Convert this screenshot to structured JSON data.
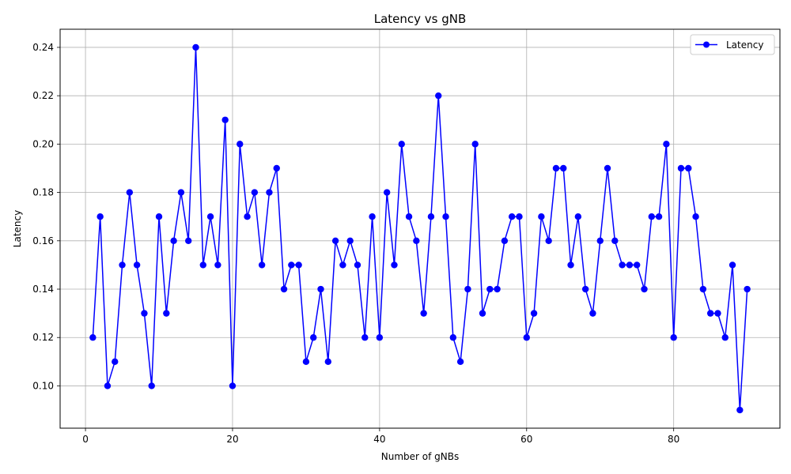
{
  "chart_data": {
    "type": "line",
    "title": "Latency vs gNB",
    "xlabel": "Number of gNBs",
    "ylabel": "Latency",
    "xlim": [
      -3.45,
      94.45
    ],
    "ylim": [
      0.0825,
      0.2475
    ],
    "xticks": [
      0,
      20,
      40,
      60,
      80
    ],
    "yticks": [
      0.1,
      0.12,
      0.14,
      0.16,
      0.18,
      0.2,
      0.22,
      0.24
    ],
    "grid": true,
    "legend_position": "top-right",
    "series": [
      {
        "name": "Latency",
        "color": "#0000ff",
        "marker": "circle",
        "x": [
          1,
          2,
          3,
          4,
          5,
          6,
          7,
          8,
          9,
          10,
          11,
          12,
          13,
          14,
          15,
          16,
          17,
          18,
          19,
          20,
          21,
          22,
          23,
          24,
          25,
          26,
          27,
          28,
          29,
          30,
          31,
          32,
          33,
          34,
          35,
          36,
          37,
          38,
          39,
          40,
          41,
          42,
          43,
          44,
          45,
          46,
          47,
          48,
          49,
          50,
          51,
          52,
          53,
          54,
          55,
          56,
          57,
          58,
          59,
          60,
          61,
          62,
          63,
          64,
          65,
          66,
          67,
          68,
          69,
          70,
          71,
          72,
          73,
          74,
          75,
          76,
          77,
          78,
          79,
          80,
          81,
          82,
          83,
          84,
          85,
          86,
          87,
          88,
          89,
          90
        ],
        "values": [
          0.12,
          0.17,
          0.1,
          0.11,
          0.15,
          0.18,
          0.15,
          0.13,
          0.1,
          0.17,
          0.13,
          0.16,
          0.18,
          0.16,
          0.24,
          0.15,
          0.17,
          0.15,
          0.21,
          0.1,
          0.2,
          0.17,
          0.18,
          0.15,
          0.18,
          0.19,
          0.14,
          0.15,
          0.15,
          0.11,
          0.12,
          0.14,
          0.11,
          0.16,
          0.15,
          0.16,
          0.15,
          0.12,
          0.17,
          0.12,
          0.18,
          0.15,
          0.2,
          0.17,
          0.16,
          0.13,
          0.17,
          0.22,
          0.17,
          0.12,
          0.11,
          0.14,
          0.2,
          0.13,
          0.14,
          0.14,
          0.16,
          0.17,
          0.17,
          0.12,
          0.13,
          0.17,
          0.16,
          0.19,
          0.19,
          0.15,
          0.17,
          0.14,
          0.13,
          0.16,
          0.19,
          0.16,
          0.15,
          0.15,
          0.15,
          0.14,
          0.17,
          0.17,
          0.2,
          0.12,
          0.19,
          0.19,
          0.17,
          0.14,
          0.13,
          0.13,
          0.12,
          0.15,
          0.09,
          0.14
        ]
      }
    ]
  }
}
